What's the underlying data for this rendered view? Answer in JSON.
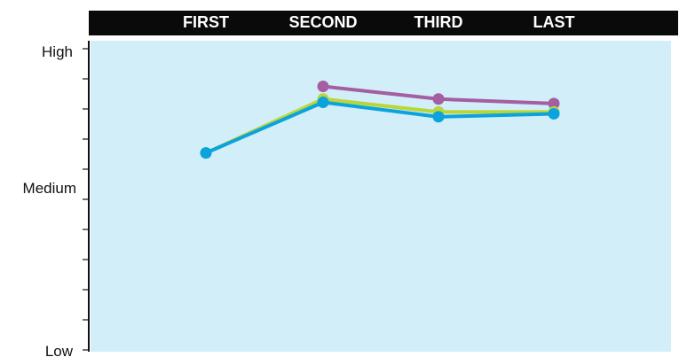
{
  "chart_data": {
    "type": "line",
    "categories": [
      "FIRST",
      "SECOND",
      "THIRD",
      "LAST"
    ],
    "y_tick_labels": [
      {
        "label": "High",
        "value": 10
      },
      {
        "label": "Medium",
        "value": 5
      },
      {
        "label": "Low",
        "value": 0
      }
    ],
    "ylim": [
      0,
      10
    ],
    "grid": false,
    "legend": "none",
    "series": [
      {
        "color": "#a45ea2",
        "values": [
          null,
          8.75,
          8.33,
          8.18
        ]
      },
      {
        "color": "#b9d639",
        "values": [
          6.54,
          8.33,
          7.9,
          7.9
        ]
      },
      {
        "color": "#0aa3dd",
        "values": [
          6.54,
          8.22,
          7.74,
          7.84
        ]
      }
    ],
    "colors": {
      "plot_background": "#d2eef8",
      "header_background": "#0a0a0a",
      "header_text": "#ffffff",
      "axis": "#111111"
    }
  }
}
